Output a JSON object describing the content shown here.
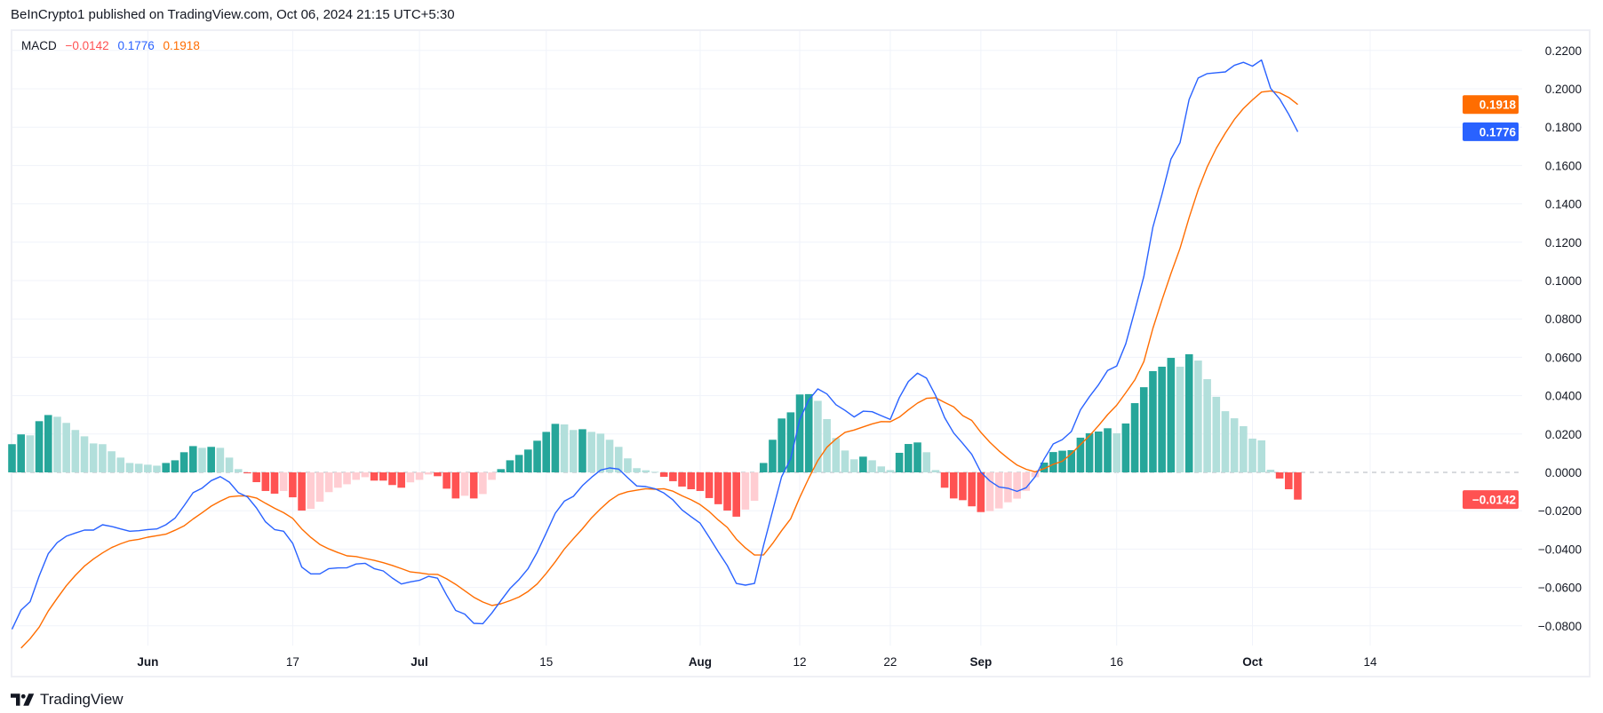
{
  "header": {
    "published": "BeInCrypto1 published on TradingView.com, Oct 06, 2024 21:15 UTC+5:30"
  },
  "legend": {
    "name": "MACD",
    "histogram": "−0.0142",
    "macd": "0.1776",
    "signal": "0.1918"
  },
  "footer": {
    "brand": "TradingView",
    "logo_icon": "tradingview-logo-icon"
  },
  "colors": {
    "macd": "#2962ff",
    "signal": "#ff6d00",
    "hist_pos_up": "#26a69a",
    "hist_pos_down": "#b2dfdb",
    "hist_neg_down": "#ff5252",
    "hist_neg_up": "#ffcdd2"
  },
  "chart_data": {
    "type": "bar+line",
    "indicator": "MACD",
    "x_start": "2024-05-17",
    "x_end": "2024-10-06",
    "interval": "1 day",
    "x_ticks": [
      {
        "label": "Jun",
        "date": "2024-06-01",
        "bold": true
      },
      {
        "label": "17",
        "date": "2024-06-17",
        "bold": false
      },
      {
        "label": "Jul",
        "date": "2024-07-01",
        "bold": true
      },
      {
        "label": "15",
        "date": "2024-07-15",
        "bold": false
      },
      {
        "label": "Aug",
        "date": "2024-08-01",
        "bold": true
      },
      {
        "label": "12",
        "date": "2024-08-12",
        "bold": false
      },
      {
        "label": "22",
        "date": "2024-08-22",
        "bold": false
      },
      {
        "label": "Sep",
        "date": "2024-09-01",
        "bold": true
      },
      {
        "label": "16",
        "date": "2024-09-16",
        "bold": false
      },
      {
        "label": "Oct",
        "date": "2024-10-01",
        "bold": true
      },
      {
        "label": "14",
        "date": "2024-10-14",
        "bold": false
      }
    ],
    "y_ticks": [
      "0.2200",
      "0.2000",
      "0.1800",
      "0.1600",
      "0.1400",
      "0.1200",
      "0.1000",
      "0.0800",
      "0.0600",
      "0.0400",
      "0.0200",
      "0.0000",
      "−0.0200",
      "−0.0400",
      "−0.0600",
      "−0.0800"
    ],
    "y_tick_values": [
      0.22,
      0.2,
      0.18,
      0.16,
      0.14,
      0.12,
      0.1,
      0.08,
      0.06,
      0.04,
      0.02,
      0,
      -0.02,
      -0.04,
      -0.06,
      -0.08
    ],
    "ylim": [
      -0.095,
      0.235
    ],
    "grid": true,
    "zero_line": "dashed",
    "last_value_labels": {
      "signal": "0.1918",
      "macd": "0.1776",
      "histogram": "−0.0142"
    },
    "series": [
      {
        "name": "Histogram",
        "kind": "histogram",
        "values": [
          0.0147,
          0.0198,
          0.0193,
          0.0267,
          0.0299,
          0.029,
          0.0258,
          0.0221,
          0.0188,
          0.0151,
          0.0147,
          0.011,
          0.0077,
          0.0049,
          0.0045,
          0.004,
          0.0035,
          0.0049,
          0.0063,
          0.0105,
          0.0137,
          0.0128,
          0.0133,
          0.0128,
          0.0077,
          0.0017,
          -0.0005,
          -0.0051,
          -0.0097,
          -0.0111,
          -0.0097,
          -0.013,
          -0.0199,
          -0.019,
          -0.0153,
          -0.0103,
          -0.008,
          -0.0062,
          -0.0039,
          -0.0025,
          -0.0043,
          -0.0043,
          -0.0066,
          -0.008,
          -0.0052,
          -0.0039,
          -0.0011,
          -0.002,
          -0.0085,
          -0.0136,
          -0.0122,
          -0.0136,
          -0.0113,
          -0.0039,
          0.0017,
          0.0063,
          0.0091,
          0.0119,
          0.0165,
          0.0211,
          0.0253,
          0.025,
          0.0221,
          0.0225,
          0.0211,
          0.0202,
          0.017,
          0.0133,
          0.0073,
          0.0022,
          0.0011,
          0.0003,
          -0.0023,
          -0.0046,
          -0.0074,
          -0.0088,
          -0.0097,
          -0.0134,
          -0.0166,
          -0.0199,
          -0.0231,
          -0.0194,
          -0.0148,
          0.0049,
          0.017,
          0.0281,
          0.0313,
          0.0406,
          0.0408,
          0.0373,
          0.0278,
          0.0179,
          0.0114,
          0.0068,
          0.0082,
          0.0063,
          0.0031,
          0.0012,
          0.0102,
          0.0148,
          0.0156,
          0.0105,
          0.0012,
          -0.008,
          -0.0136,
          -0.0145,
          -0.0177,
          -0.0207,
          -0.0202,
          -0.0188,
          -0.0156,
          -0.0137,
          -0.0096,
          -0.0025,
          0.0051,
          0.0106,
          0.0113,
          0.0116,
          0.0181,
          0.0204,
          0.0213,
          0.023,
          0.0204,
          0.0255,
          0.0361,
          0.0444,
          0.0528,
          0.0551,
          0.0597,
          0.0551,
          0.0616,
          0.0583,
          0.0486,
          0.0394,
          0.0319,
          0.0282,
          0.0241,
          0.0176,
          0.0167,
          0.0014,
          -0.0032,
          -0.0088,
          -0.0142
        ]
      },
      {
        "name": "MACD",
        "kind": "line",
        "values": [
          -0.0818,
          -0.0718,
          -0.0674,
          -0.054,
          -0.0424,
          -0.0366,
          -0.0333,
          -0.0316,
          -0.0301,
          -0.0301,
          -0.0273,
          -0.0282,
          -0.0295,
          -0.0307,
          -0.0304,
          -0.0298,
          -0.0295,
          -0.0273,
          -0.0239,
          -0.0174,
          -0.0106,
          -0.0082,
          -0.0043,
          -0.0022,
          -0.0051,
          -0.0106,
          -0.0128,
          -0.0185,
          -0.0258,
          -0.0298,
          -0.0307,
          -0.037,
          -0.0494,
          -0.0529,
          -0.0529,
          -0.0502,
          -0.0498,
          -0.0497,
          -0.0478,
          -0.0474,
          -0.0502,
          -0.0514,
          -0.0551,
          -0.0582,
          -0.0571,
          -0.0563,
          -0.0542,
          -0.0552,
          -0.064,
          -0.072,
          -0.0739,
          -0.0787,
          -0.0789,
          -0.0733,
          -0.0668,
          -0.0606,
          -0.0559,
          -0.0502,
          -0.0417,
          -0.0316,
          -0.0213,
          -0.015,
          -0.0125,
          -0.0069,
          -0.0026,
          0.0012,
          0.0023,
          0.0017,
          -0.0028,
          -0.0071,
          -0.0074,
          -0.0085,
          -0.0108,
          -0.0144,
          -0.0196,
          -0.0231,
          -0.0265,
          -0.0338,
          -0.0414,
          -0.0486,
          -0.0579,
          -0.0588,
          -0.0579,
          -0.0381,
          -0.0201,
          -0.0023,
          0.0071,
          0.0275,
          0.0378,
          0.0435,
          0.0409,
          0.0353,
          0.0323,
          0.0289,
          0.0319,
          0.0316,
          0.0296,
          0.0276,
          0.039,
          0.0474,
          0.0517,
          0.0491,
          0.0401,
          0.0285,
          0.0205,
          0.0151,
          0.0094,
          0.0002,
          -0.0045,
          -0.0076,
          -0.0083,
          -0.0099,
          -0.008,
          -0.0022,
          0.0071,
          0.0148,
          0.0171,
          0.0213,
          0.0326,
          0.0395,
          0.0457,
          0.0531,
          0.0554,
          0.067,
          0.0843,
          0.1022,
          0.1278,
          0.1448,
          0.1634,
          0.1719,
          0.1944,
          0.2056,
          0.2079,
          0.2084,
          0.2088,
          0.2122,
          0.2138,
          0.2118,
          0.215,
          0.2003,
          0.1947,
          0.1867,
          0.1776
        ]
      },
      {
        "name": "Signal",
        "kind": "line",
        "values": [
          -0.0965,
          -0.0916,
          -0.0867,
          -0.0807,
          -0.0723,
          -0.0656,
          -0.0591,
          -0.0537,
          -0.0489,
          -0.0452,
          -0.042,
          -0.0392,
          -0.0372,
          -0.0356,
          -0.0349,
          -0.0338,
          -0.033,
          -0.0322,
          -0.0302,
          -0.0279,
          -0.0243,
          -0.021,
          -0.0176,
          -0.015,
          -0.0128,
          -0.0123,
          -0.0123,
          -0.0134,
          -0.0161,
          -0.0187,
          -0.021,
          -0.024,
          -0.0295,
          -0.0339,
          -0.0376,
          -0.0399,
          -0.0418,
          -0.0435,
          -0.0439,
          -0.0449,
          -0.0459,
          -0.0471,
          -0.0485,
          -0.0502,
          -0.0519,
          -0.0524,
          -0.0531,
          -0.0532,
          -0.0555,
          -0.0584,
          -0.0617,
          -0.0651,
          -0.0676,
          -0.0694,
          -0.0685,
          -0.0669,
          -0.065,
          -0.0621,
          -0.0582,
          -0.0527,
          -0.0466,
          -0.04,
          -0.0346,
          -0.0294,
          -0.0237,
          -0.019,
          -0.0147,
          -0.0116,
          -0.0101,
          -0.0093,
          -0.0085,
          -0.0088,
          -0.0085,
          -0.0098,
          -0.0122,
          -0.0143,
          -0.0168,
          -0.0204,
          -0.0248,
          -0.0287,
          -0.0348,
          -0.0394,
          -0.0431,
          -0.043,
          -0.0371,
          -0.0304,
          -0.0242,
          -0.0131,
          -0.003,
          0.0062,
          0.0131,
          0.0174,
          0.0209,
          0.0221,
          0.0237,
          0.0253,
          0.0265,
          0.0264,
          0.0288,
          0.0326,
          0.0361,
          0.0386,
          0.0389,
          0.0365,
          0.0341,
          0.0296,
          0.0271,
          0.0209,
          0.0157,
          0.0112,
          0.0073,
          0.0038,
          0.0016,
          0.0003,
          0.002,
          0.0042,
          0.0058,
          0.0097,
          0.0145,
          0.0191,
          0.0244,
          0.0301,
          0.035,
          0.0415,
          0.0482,
          0.0578,
          0.075,
          0.0897,
          0.1037,
          0.1168,
          0.1328,
          0.1473,
          0.1593,
          0.169,
          0.1769,
          0.184,
          0.1897,
          0.1942,
          0.1983,
          0.1989,
          0.1979,
          0.1955,
          0.1918
        ]
      }
    ]
  }
}
